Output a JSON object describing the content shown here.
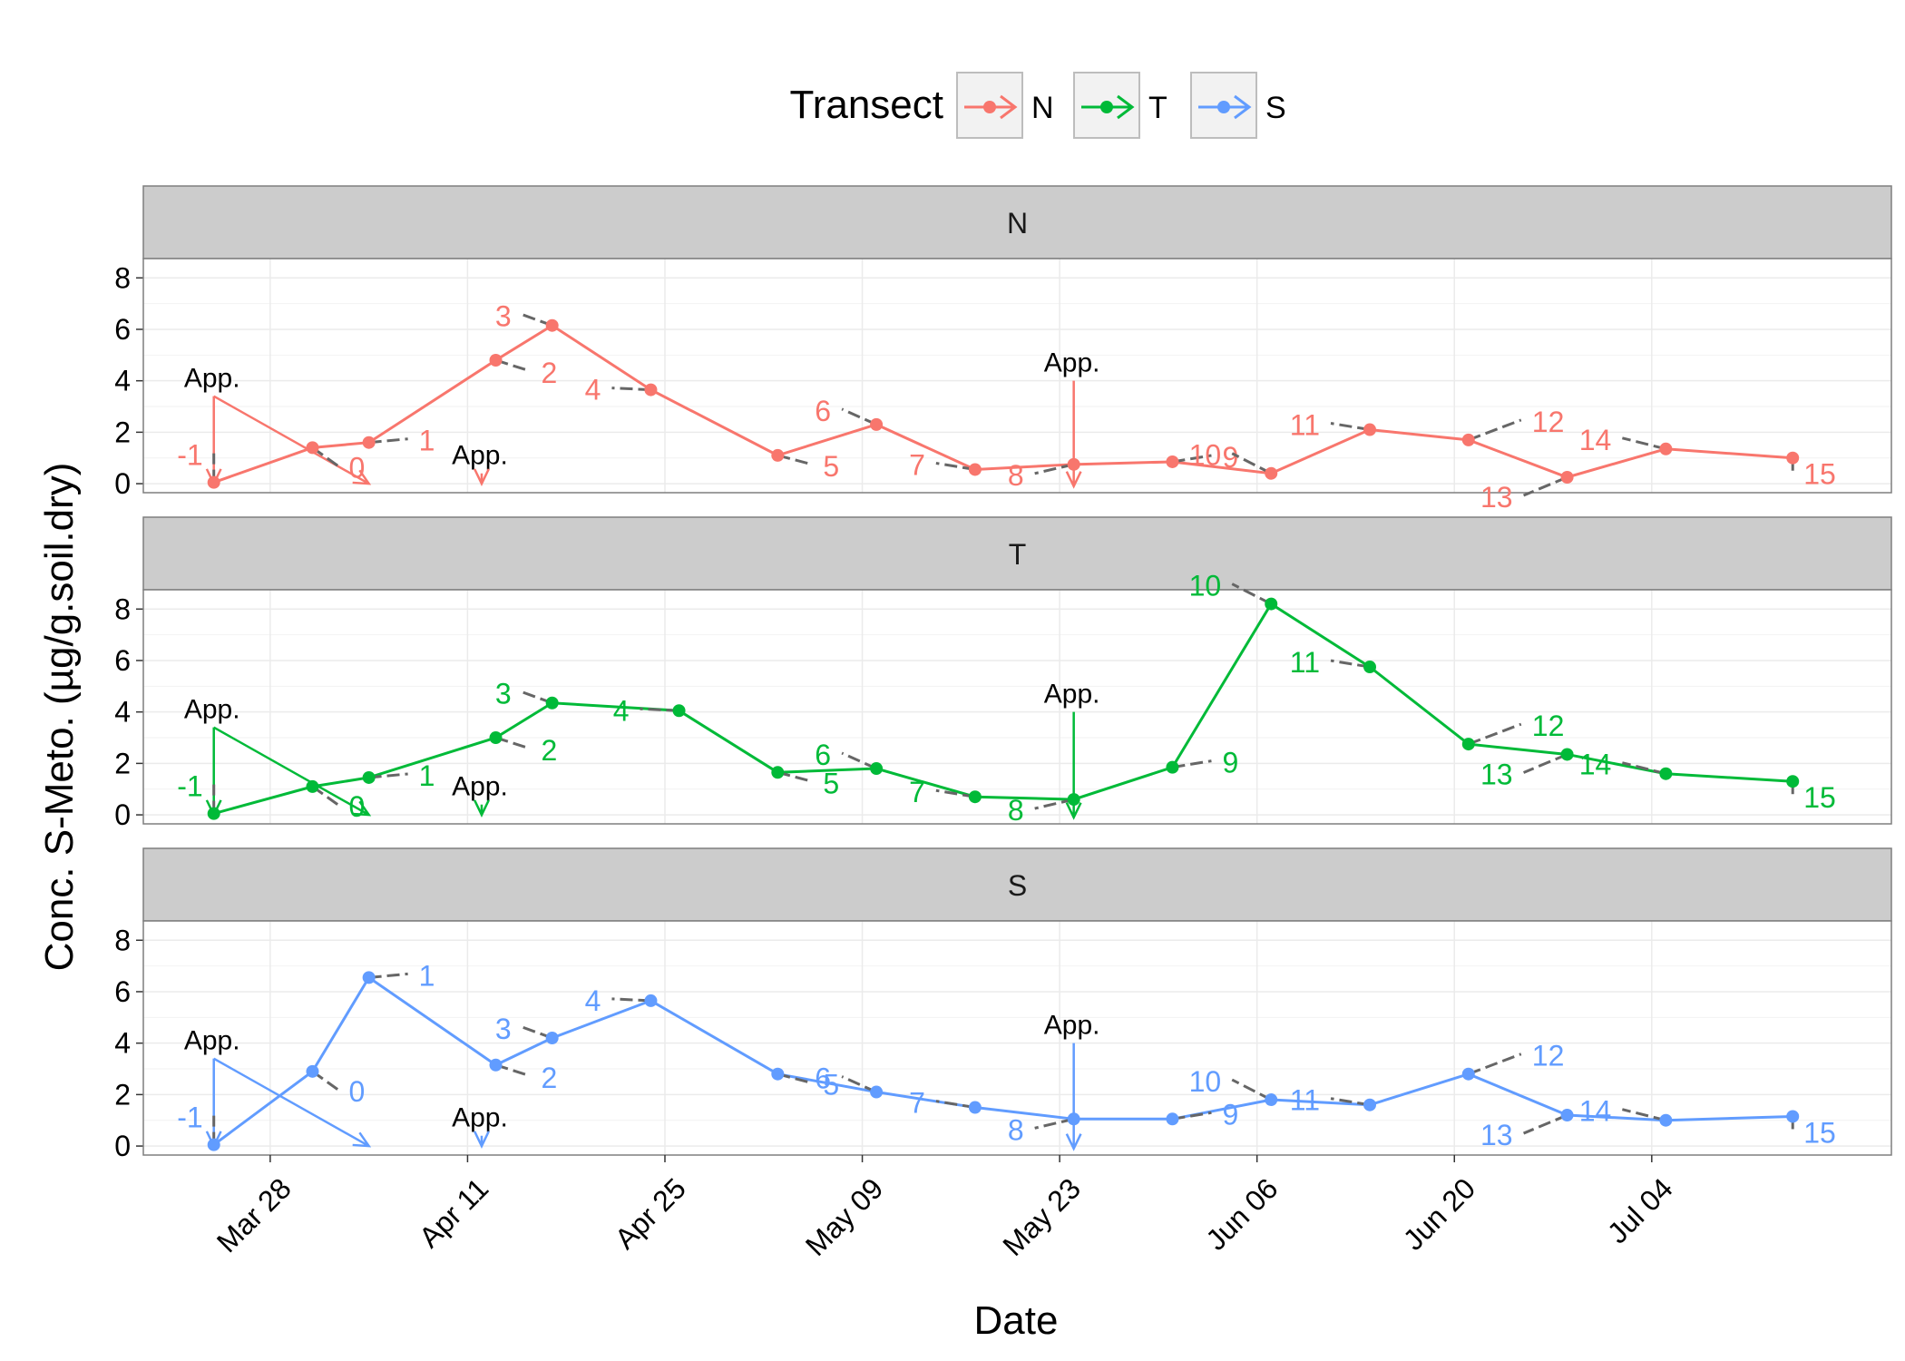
{
  "chart_data": {
    "type": "line",
    "facet_by": "Transect",
    "xlabel": "Date",
    "ylabel": "Conc. S-Meto.  (µg/g.soil.dry)",
    "ylim": [
      0,
      8
    ],
    "yticks": [
      0,
      2,
      4,
      6,
      8
    ],
    "xlim": [
      "2016-03-19",
      "2016-07-21"
    ],
    "xticks": [
      {
        "date": "2016-03-28",
        "label": "Mar 28"
      },
      {
        "date": "2016-04-11",
        "label": "Apr 11"
      },
      {
        "date": "2016-04-25",
        "label": "Apr 25"
      },
      {
        "date": "2016-05-09",
        "label": "May 09"
      },
      {
        "date": "2016-05-23",
        "label": "May 23"
      },
      {
        "date": "2016-06-06",
        "label": "Jun 06"
      },
      {
        "date": "2016-06-20",
        "label": "Jun 20"
      },
      {
        "date": "2016-07-04",
        "label": "Jul 04"
      }
    ],
    "legend": {
      "title": "Transect",
      "position": "top",
      "entries": [
        "N",
        "T",
        "S"
      ]
    },
    "grid": true,
    "series": [
      {
        "name": "N",
        "color": "#F8766D",
        "points": [
          {
            "date": "2016-03-24",
            "y": 0.05,
            "label": "-1"
          },
          {
            "date": "2016-03-31",
            "y": 1.4,
            "label": "0"
          },
          {
            "date": "2016-04-04",
            "y": 1.6,
            "label": "1"
          },
          {
            "date": "2016-04-13",
            "y": 4.8,
            "label": "2"
          },
          {
            "date": "2016-04-17",
            "y": 6.15,
            "label": "3"
          },
          {
            "date": "2016-04-24",
            "y": 3.65,
            "label": "4"
          },
          {
            "date": "2016-05-03",
            "y": 1.1,
            "label": "5"
          },
          {
            "date": "2016-05-10",
            "y": 2.3,
            "label": "6"
          },
          {
            "date": "2016-05-17",
            "y": 0.55,
            "label": "7"
          },
          {
            "date": "2016-05-24",
            "y": 0.75,
            "label": "8"
          },
          {
            "date": "2016-05-31",
            "y": 0.85,
            "label": "9"
          },
          {
            "date": "2016-06-07",
            "y": 0.4,
            "label": "10"
          },
          {
            "date": "2016-06-14",
            "y": 2.1,
            "label": "11"
          },
          {
            "date": "2016-06-21",
            "y": 1.7,
            "label": "12"
          },
          {
            "date": "2016-06-28",
            "y": 0.25,
            "label": "13"
          },
          {
            "date": "2016-07-05",
            "y": 1.35,
            "label": "14"
          },
          {
            "date": "2016-07-14",
            "y": 1.0,
            "label": "15"
          }
        ]
      },
      {
        "name": "T",
        "color": "#00BA38",
        "points": [
          {
            "date": "2016-03-24",
            "y": 0.05,
            "label": "-1"
          },
          {
            "date": "2016-03-31",
            "y": 1.1,
            "label": "0"
          },
          {
            "date": "2016-04-04",
            "y": 1.45,
            "label": "1"
          },
          {
            "date": "2016-04-13",
            "y": 3.0,
            "label": "2"
          },
          {
            "date": "2016-04-17",
            "y": 4.35,
            "label": "3"
          },
          {
            "date": "2016-04-26",
            "y": 4.05,
            "label": "4"
          },
          {
            "date": "2016-05-03",
            "y": 1.65,
            "label": "5"
          },
          {
            "date": "2016-05-10",
            "y": 1.8,
            "label": "6"
          },
          {
            "date": "2016-05-17",
            "y": 0.7,
            "label": "7"
          },
          {
            "date": "2016-05-24",
            "y": 0.6,
            "label": "8"
          },
          {
            "date": "2016-05-31",
            "y": 1.85,
            "label": "9"
          },
          {
            "date": "2016-06-07",
            "y": 8.2,
            "label": "10"
          },
          {
            "date": "2016-06-14",
            "y": 5.75,
            "label": "11"
          },
          {
            "date": "2016-06-21",
            "y": 2.75,
            "label": "12"
          },
          {
            "date": "2016-06-28",
            "y": 2.35,
            "label": "13"
          },
          {
            "date": "2016-07-05",
            "y": 1.6,
            "label": "14"
          },
          {
            "date": "2016-07-14",
            "y": 1.3,
            "label": "15"
          }
        ]
      },
      {
        "name": "S",
        "color": "#619CFF",
        "points": [
          {
            "date": "2016-03-24",
            "y": 0.05,
            "label": "-1"
          },
          {
            "date": "2016-03-31",
            "y": 2.9,
            "label": "0"
          },
          {
            "date": "2016-04-04",
            "y": 6.55,
            "label": "1"
          },
          {
            "date": "2016-04-13",
            "y": 3.15,
            "label": "2"
          },
          {
            "date": "2016-04-17",
            "y": 4.2,
            "label": "3"
          },
          {
            "date": "2016-04-24",
            "y": 5.65,
            "label": "4"
          },
          {
            "date": "2016-05-03",
            "y": 2.8,
            "label": "5"
          },
          {
            "date": "2016-05-10",
            "y": 2.1,
            "label": "6"
          },
          {
            "date": "2016-05-17",
            "y": 1.5,
            "label": "7"
          },
          {
            "date": "2016-05-24",
            "y": 1.05,
            "label": "8"
          },
          {
            "date": "2016-05-31",
            "y": 1.05,
            "label": "9"
          },
          {
            "date": "2016-06-07",
            "y": 1.8,
            "label": "10"
          },
          {
            "date": "2016-06-14",
            "y": 1.6,
            "label": "11"
          },
          {
            "date": "2016-06-21",
            "y": 2.8,
            "label": "12"
          },
          {
            "date": "2016-06-28",
            "y": 1.2,
            "label": "13"
          },
          {
            "date": "2016-07-05",
            "y": 1.0,
            "label": "14"
          },
          {
            "date": "2016-07-14",
            "y": 1.15,
            "label": "15"
          }
        ]
      }
    ],
    "application_annotations": [
      {
        "text": "App.",
        "date": "2016-03-24",
        "y": 3.4,
        "points_to": [
          {
            "date": "2016-03-24",
            "y": 0.0
          },
          {
            "date": "2016-04-04",
            "y": 0.0
          }
        ]
      },
      {
        "text": "App.",
        "date": "2016-04-12",
        "y": 0.4,
        "points_to": [
          {
            "date": "2016-04-12",
            "y": 0.0
          }
        ]
      },
      {
        "text": "App.",
        "date": "2016-05-24",
        "y": 4.0,
        "points_to": [
          {
            "date": "2016-05-24",
            "y": -0.1
          }
        ]
      }
    ]
  }
}
